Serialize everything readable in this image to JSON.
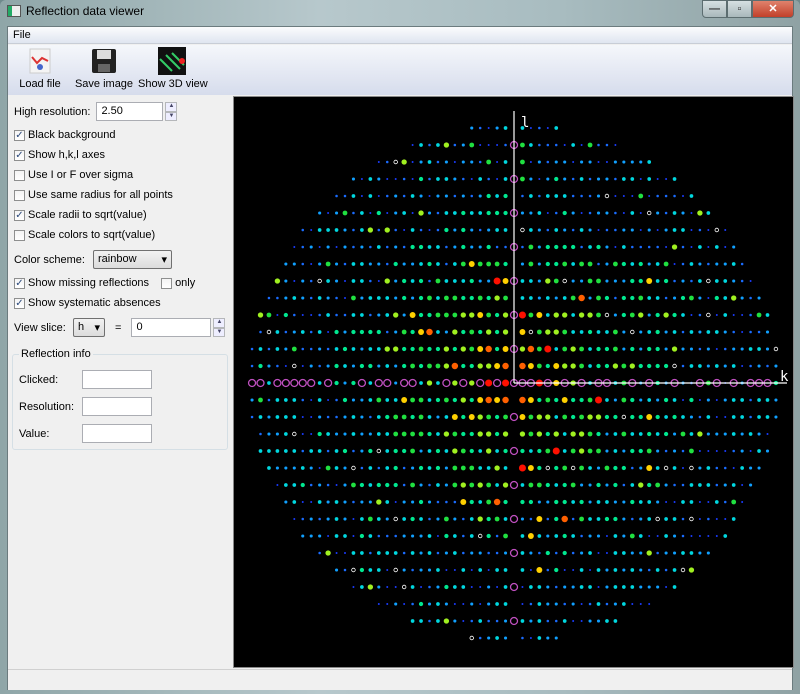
{
  "window": {
    "title": "Reflection data viewer",
    "minimize": "—",
    "maximize": "▫",
    "close": "✕"
  },
  "menu": {
    "file": "File"
  },
  "toolbar": {
    "load": "Load file",
    "save": "Save image",
    "show3d": "Show 3D view"
  },
  "controls": {
    "high_res_label": "High resolution:",
    "high_res_value": "2.50",
    "black_bg": {
      "label": "Black background",
      "checked": true
    },
    "show_axes": {
      "label": "Show h,k,l axes",
      "checked": true
    },
    "i_over_sigma": {
      "label": "Use I or F over sigma",
      "checked": false
    },
    "same_radius": {
      "label": "Use same radius for all points",
      "checked": false
    },
    "scale_radii": {
      "label": "Scale radii to sqrt(value)",
      "checked": true
    },
    "scale_colors": {
      "label": "Scale colors to sqrt(value)",
      "checked": false
    },
    "color_scheme_label": "Color scheme:",
    "color_scheme_value": "rainbow",
    "show_missing": {
      "label": "Show missing reflections",
      "checked": true
    },
    "only": {
      "label": "only",
      "checked": false
    },
    "show_absences": {
      "label": "Show systematic absences",
      "checked": true
    },
    "view_slice_label": "View slice:",
    "slice_axis": "h",
    "equals": "=",
    "slice_value": "0"
  },
  "reflection_info": {
    "title": "Reflection info",
    "clicked_label": "Clicked:",
    "resolution_label": "Resolution:",
    "value_label": "Value:",
    "clicked": "",
    "resolution": "",
    "value": ""
  },
  "viewer": {
    "axis_vertical": "l",
    "axis_horizontal": "k",
    "background": "#000000",
    "missing_color": "#c050c0",
    "absence_color": "#ffffff",
    "axis_color": "#ffffff"
  }
}
